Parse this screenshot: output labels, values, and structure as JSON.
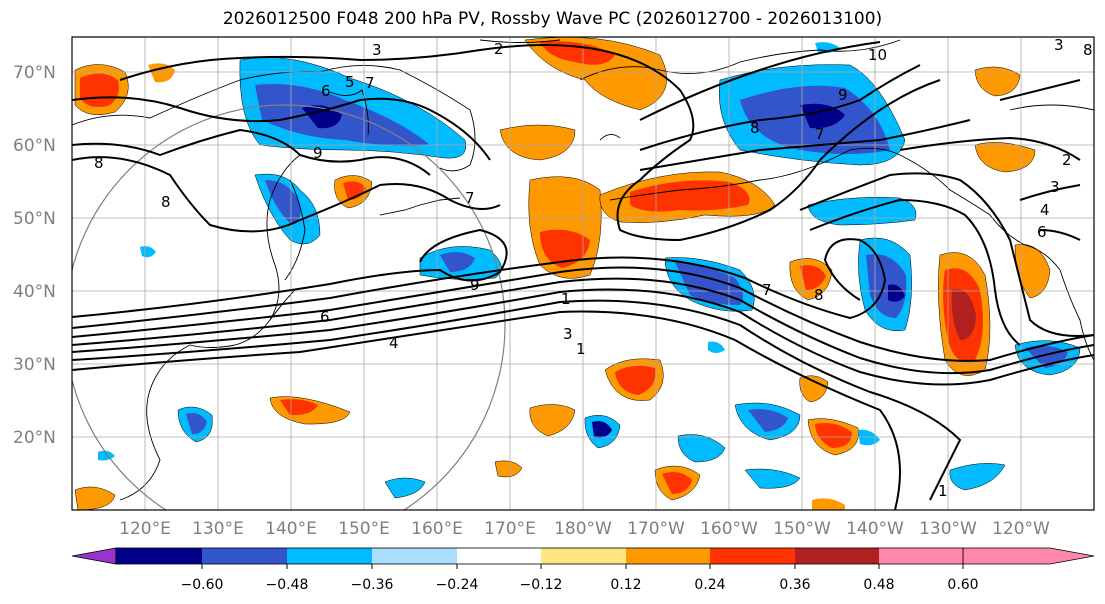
{
  "title": "2026012500 F048 200 hPa PV, Rossby Wave PC (2026012700 - 2026013100)",
  "lat_labels": [
    "70°N",
    "60°N",
    "50°N",
    "40°N",
    "30°N",
    "20°N"
  ],
  "lon_labels": [
    "120°E",
    "130°E",
    "140°E",
    "150°E",
    "160°E",
    "170°E",
    "180°W",
    "170°W",
    "160°W",
    "150°W",
    "140°W",
    "130°W",
    "120°W"
  ],
  "colorbar": {
    "ticks": [
      "−0.60",
      "−0.48",
      "−0.36",
      "−0.24",
      "−0.12",
      "0.12",
      "0.24",
      "0.36",
      "0.48",
      "0.60"
    ],
    "colors": [
      "#9933cc",
      "#000088",
      "#3355cc",
      "#00bbff",
      "#aaddff",
      "#ffffff",
      "#ffe680",
      "#ff9900",
      "#ff3300",
      "#b02020",
      "#ff88aa"
    ]
  },
  "contour_labels": [
    "2",
    "3",
    "5",
    "6",
    "7",
    "9",
    "8",
    "8",
    "7",
    "10",
    "9",
    "8",
    "7",
    "9",
    "7",
    "8",
    "6",
    "4",
    "3",
    "1",
    "1",
    "1",
    "3",
    "4",
    "6",
    "2",
    "3",
    "8"
  ]
}
